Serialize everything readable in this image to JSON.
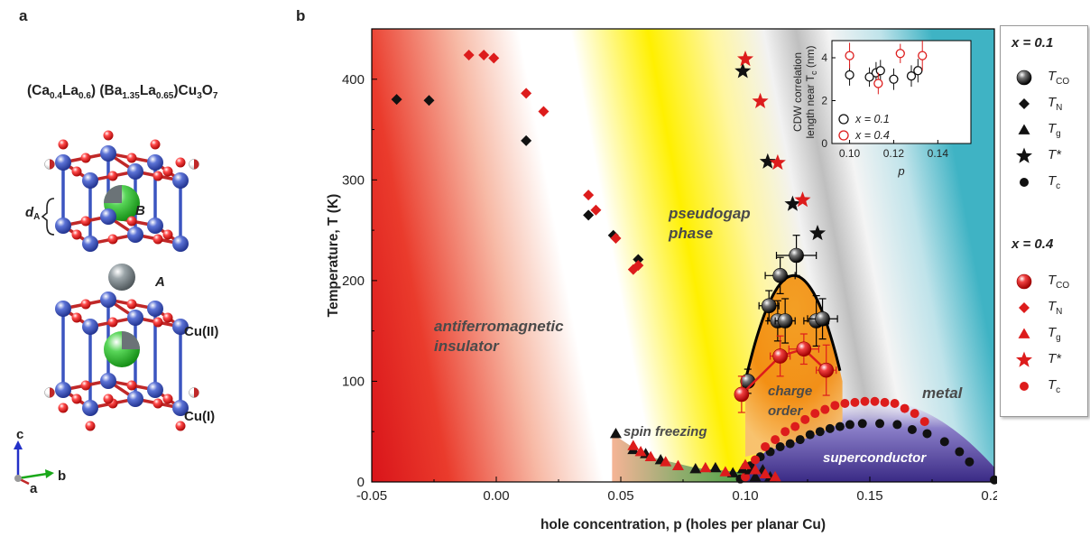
{
  "panels": {
    "a": "a",
    "b": "b"
  },
  "formula": {
    "p1": "(Ca",
    "s1": "0.4",
    "p2": "La",
    "s2": "0.6",
    "p3": ") (Ba",
    "s3": "1.35",
    "p4": "La",
    "s4": "0.65",
    "p5": ")Cu",
    "s5": "3",
    "p6": "O",
    "s6": "7"
  },
  "crystal_labels": {
    "dA": "d",
    "dA_sub": "A",
    "B": "B",
    "A": "A",
    "CuII": "Cu(II)",
    "CuI": "Cu(I)",
    "axis_c": "c",
    "axis_b": "b",
    "axis_a": "a"
  },
  "colors": {
    "x01": "#111111",
    "x04": "#dd1c1c",
    "afm": "#e01d1d",
    "pseudogap": "#ffee00",
    "metal": "#4bb8c8",
    "sc": "#5a4aa0",
    "co": "#f08a00",
    "sf": "#2a9a3a"
  },
  "regions": {
    "afm": "antiferromagnetic insulator",
    "pseudogap": "pseudogap phase",
    "co": "charge order",
    "sf": "spin freezing",
    "metal": "metal",
    "sc": "superconductor"
  },
  "legend": {
    "g1": "x = 0.1",
    "g2": "x = 0.4",
    "rows": [
      {
        "sym": "T",
        "sub": "CO"
      },
      {
        "sym": "T",
        "sub": "N"
      },
      {
        "sym": "T",
        "sub": "g"
      },
      {
        "sym": "T*",
        "sub": ""
      },
      {
        "sym": "T",
        "sub": "c"
      }
    ]
  },
  "chart_data": [
    {
      "type": "scatter",
      "xlabel": "hole concentration, p (holes per planar Cu)",
      "ylabel": "Temperature, T (K)",
      "xlim": [
        -0.05,
        0.2
      ],
      "ylim": [
        0,
        450
      ],
      "xticks": [
        "-0.05",
        "0.00",
        "0.05",
        "0.10",
        "0.15",
        "0.20"
      ],
      "yticks": [
        "0",
        "100",
        "200",
        "300",
        "400"
      ],
      "series": [
        {
          "name": "T_CO (x = 0.1)",
          "x": [
            0.101,
            0.1095,
            0.113,
            0.114,
            0.116,
            0.1205,
            0.1285,
            0.131
          ],
          "y": [
            100,
            175,
            160,
            205,
            160,
            225,
            160,
            162
          ],
          "xerr": [
            0.002,
            0.004,
            0.004,
            0.006,
            0.004,
            0.008,
            0.005,
            0.006
          ],
          "yerr": [
            12,
            15,
            20,
            18,
            22,
            20,
            25,
            20
          ]
        },
        {
          "name": "T_N (x = 0.1)",
          "x": [
            -0.04,
            -0.027,
            0.012,
            0.037,
            0.047,
            0.057
          ],
          "y": [
            380,
            379,
            339,
            265,
            245,
            221
          ]
        },
        {
          "name": "T_g (x = 0.1)",
          "x": [
            0.048,
            0.055,
            0.06,
            0.066,
            0.08,
            0.088,
            0.095,
            0.099,
            0.102,
            0.104,
            0.107,
            0.11
          ],
          "y": [
            48,
            32,
            28,
            22,
            13,
            14,
            9,
            13,
            12,
            5,
            12,
            5
          ]
        },
        {
          "name": "T* (x = 0.1)",
          "x": [
            0.099,
            0.109,
            0.119,
            0.129
          ],
          "y": [
            408,
            318,
            276,
            247
          ]
        },
        {
          "name": "T_c (x = 0.1)",
          "x": [
            0.098,
            0.102,
            0.106,
            0.11,
            0.114,
            0.118,
            0.122,
            0.126,
            0.13,
            0.134,
            0.138,
            0.142,
            0.147,
            0.154,
            0.161,
            0.167,
            0.173,
            0.18,
            0.186,
            0.19,
            0.2
          ],
          "y": [
            3,
            16,
            25,
            30,
            35,
            38,
            42,
            47,
            50,
            53,
            55,
            57,
            58,
            58,
            57,
            52,
            48,
            40,
            30,
            20,
            2
          ]
        },
        {
          "name": "T_CO (x = 0.4)",
          "x": [
            0.0985,
            0.114,
            0.1235,
            0.1325
          ],
          "y": [
            87,
            125,
            132,
            111
          ],
          "xerr": [
            0.002,
            0.004,
            0.006,
            0.004
          ],
          "yerr": [
            18,
            20,
            15,
            25
          ]
        },
        {
          "name": "T_N (x = 0.4)",
          "x": [
            -0.011,
            -0.005,
            -0.001,
            0.012,
            0.019,
            0.037,
            0.04,
            0.048,
            0.055,
            0.057
          ],
          "y": [
            424,
            424,
            421,
            386,
            368,
            285,
            270,
            242,
            211,
            215
          ]
        },
        {
          "name": "T_g (x = 0.4)",
          "x": [
            0.055,
            0.058,
            0.062,
            0.068,
            0.073,
            0.084,
            0.092,
            0.1,
            0.104,
            0.108,
            0.112
          ],
          "y": [
            36,
            30,
            25,
            20,
            16,
            14,
            10,
            17,
            12,
            8,
            5
          ]
        },
        {
          "name": "T* (x = 0.4)",
          "x": [
            0.1,
            0.106,
            0.113,
            0.123
          ],
          "y": [
            420,
            378,
            317,
            280
          ]
        },
        {
          "name": "T_c (x = 0.4)",
          "x": [
            0.1,
            0.104,
            0.108,
            0.112,
            0.116,
            0.12,
            0.124,
            0.128,
            0.132,
            0.136,
            0.14,
            0.144,
            0.148,
            0.152,
            0.156,
            0.16,
            0.164,
            0.168,
            0.172
          ],
          "y": [
            5,
            22,
            35,
            42,
            50,
            55,
            62,
            68,
            72,
            76,
            78,
            79,
            80,
            80,
            79,
            78,
            73,
            68,
            60
          ]
        }
      ]
    },
    {
      "type": "scatter",
      "xlabel": "p",
      "ylabel": "CDW correlation length near T_c (nm)",
      "ylabel_line1": "CDW correlation",
      "ylabel_line2": "length near T",
      "ylabel_sub": "c",
      "ylabel_unit": " (nm)",
      "xlim": [
        0.092,
        0.155
      ],
      "ylim": [
        0,
        4.8
      ],
      "xticks": [
        "0.10",
        "0.12",
        "0.14"
      ],
      "yticks": [
        "0",
        "2",
        "4"
      ],
      "legend": [
        "x = 0.1",
        "x = 0.4"
      ],
      "series": [
        {
          "name": "x = 0.1",
          "x": [
            0.1,
            0.109,
            0.112,
            0.114,
            0.12,
            0.128,
            0.131
          ],
          "y": [
            3.2,
            3.1,
            3.3,
            3.4,
            3.0,
            3.15,
            3.4
          ],
          "yerr": [
            0.5,
            0.45,
            0.5,
            0.5,
            0.5,
            0.5,
            0.55
          ]
        },
        {
          "name": "x = 0.4",
          "x": [
            0.1,
            0.113,
            0.123,
            0.133
          ],
          "y": [
            4.1,
            2.8,
            4.2,
            4.1
          ],
          "yerr": [
            0.6,
            0.5,
            0.45,
            0.7
          ]
        }
      ]
    }
  ]
}
